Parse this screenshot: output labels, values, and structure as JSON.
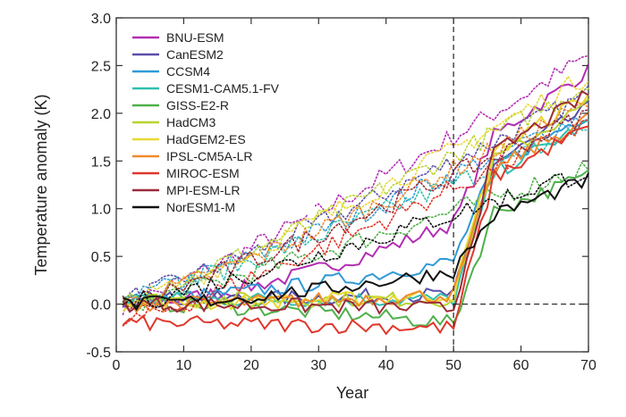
{
  "chart_data": {
    "type": "line",
    "xlabel": "Year",
    "ylabel": "Temperature anomaly (K)",
    "xlim": [
      0,
      70
    ],
    "ylim": [
      -0.5,
      3.0
    ],
    "xticks": [
      "0",
      "10",
      "20",
      "30",
      "40",
      "50",
      "60",
      "70"
    ],
    "yticks": [
      "-0.5",
      "0.0",
      "0.5",
      "1.0",
      "1.5",
      "2.0",
      "2.5",
      "3.0"
    ],
    "reference_lines": {
      "vertical_x": 50,
      "horizontal_y": 0.0,
      "style": "dashed"
    },
    "legend_position": "top-left",
    "grid": false,
    "x": [
      1,
      2,
      3,
      4,
      5,
      6,
      7,
      8,
      9,
      10,
      11,
      12,
      13,
      14,
      15,
      16,
      17,
      18,
      19,
      20,
      21,
      22,
      23,
      24,
      25,
      26,
      27,
      28,
      29,
      30,
      31,
      32,
      33,
      34,
      35,
      36,
      37,
      38,
      39,
      40,
      41,
      42,
      43,
      44,
      45,
      46,
      47,
      48,
      49,
      50,
      51,
      52,
      53,
      54,
      55,
      56,
      57,
      58,
      59,
      60,
      61,
      62,
      63,
      64,
      65,
      66,
      67,
      68,
      69,
      70
    ],
    "series": [
      {
        "name": "BNU-ESM",
        "color": "#b32db3",
        "dotted_end": 2.6,
        "solid_start": 0.0,
        "base_end": 0.85,
        "final": 2.45
      },
      {
        "name": "CanESM2",
        "color": "#5a4fa8",
        "dotted_end": 2.2,
        "solid_start": 0.05,
        "base_end": 0.1,
        "final": 2.05
      },
      {
        "name": "CCSM4",
        "color": "#2f9ad6",
        "dotted_end": 2.0,
        "solid_start": 0.05,
        "base_end": 0.45,
        "final": 2.0
      },
      {
        "name": "CESM1-CAM5.1-FV",
        "color": "#2fbfb0",
        "dotted_end": 1.85,
        "solid_start": 0.05,
        "base_end": 0.05,
        "final": 1.9
      },
      {
        "name": "GISS-E2-R",
        "color": "#4fb04a",
        "dotted_end": 1.45,
        "solid_start": 0.0,
        "base_end": -0.2,
        "final": 1.35
      },
      {
        "name": "HadCM3",
        "color": "#b8d42e",
        "dotted_end": 2.3,
        "solid_start": 0.05,
        "base_end": 0.05,
        "final": 2.1
      },
      {
        "name": "HadGEM2-ES",
        "color": "#e8d832",
        "dotted_end": 2.4,
        "solid_start": 0.0,
        "base_end": 0.1,
        "final": 2.2
      },
      {
        "name": "IPSL-CM5A-LR",
        "color": "#f08a2a",
        "dotted_end": 2.1,
        "solid_start": 0.0,
        "base_end": 0.1,
        "final": 1.95
      },
      {
        "name": "MIROC-ESM",
        "color": "#e0372b",
        "dotted_end": 1.9,
        "solid_start": -0.2,
        "base_end": -0.25,
        "final": 1.85
      },
      {
        "name": "MPI-ESM-LR",
        "color": "#9b2b3a",
        "dotted_end": 2.0,
        "solid_start": 0.0,
        "base_end": -0.05,
        "final": 2.2
      },
      {
        "name": "NorESM1-M",
        "color": "#111111",
        "dotted_end": 1.4,
        "solid_start": 0.0,
        "base_end": 0.35,
        "final": 1.3
      }
    ]
  }
}
